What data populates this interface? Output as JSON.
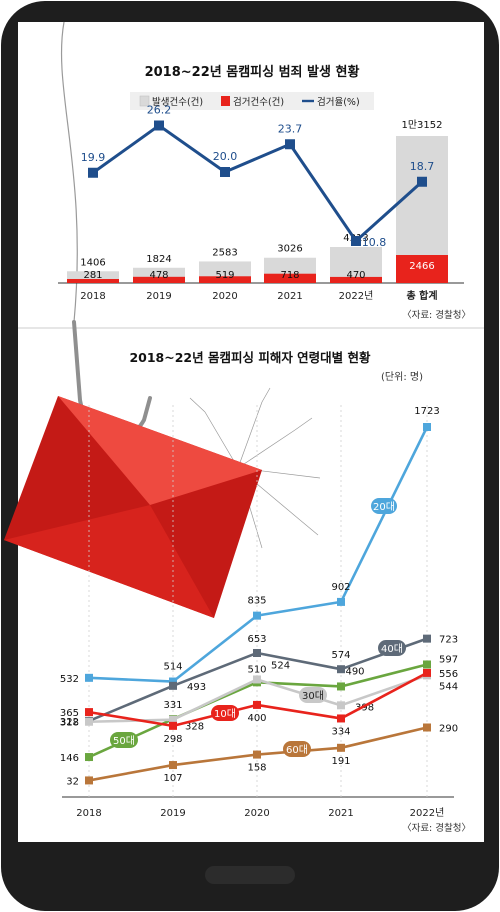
{
  "chart_data": [
    {
      "type": "bar",
      "title": "2018~22년 몸캠피싱 범죄 발생 현황",
      "legend": [
        "발생건수(건)",
        "검거건수(건)",
        "검거율(%)"
      ],
      "categories": [
        "2018",
        "2019",
        "2020",
        "2021",
        "2022년",
        "총 합계"
      ],
      "series": [
        {
          "name": "발생건수(건)",
          "values": [
            1406,
            1824,
            2583,
            3026,
            4313,
            13152
          ],
          "labels": [
            "1406",
            "1824",
            "2583",
            "3026",
            "4313",
            "1만3152"
          ],
          "color": "#d9d9d9"
        },
        {
          "name": "검거건수(건)",
          "values": [
            281,
            478,
            519,
            718,
            470,
            2466
          ],
          "labels": [
            "281",
            "478",
            "519",
            "718",
            "470",
            "2466"
          ],
          "color": "#e8231c"
        },
        {
          "name": "검거율(%)",
          "values": [
            19.9,
            26.2,
            20.0,
            23.7,
            10.8,
            18.7
          ],
          "labels": [
            "19.9",
            "26.2",
            "20.0",
            "23.7",
            "10.8",
            "18.7"
          ],
          "color": "#1f4e8c"
        }
      ],
      "source": "〈자료: 경찰청〉"
    },
    {
      "type": "line",
      "title": "2018~22년 몸캠피싱 피해자 연령대별 현황",
      "unit": "(단위: 명)",
      "categories": [
        "2018",
        "2019",
        "2020",
        "2021",
        "2022년"
      ],
      "series": [
        {
          "name": "20대",
          "values": [
            532,
            514,
            835,
            902,
            1723
          ],
          "color": "#4ea6dc"
        },
        {
          "name": "40대",
          "values": [
            322,
            493,
            653,
            574,
            723
          ],
          "color": "#5e6a78"
        },
        {
          "name": "50대",
          "values": [
            146,
            331,
            510,
            490,
            597
          ],
          "color": "#6aa63f"
        },
        {
          "name": "30대",
          "values": [
            318,
            328,
            524,
            398,
            544
          ],
          "color": "#c8c8c8"
        },
        {
          "name": "10대",
          "values": [
            365,
            298,
            400,
            334,
            556
          ],
          "color": "#e8231c"
        },
        {
          "name": "60대",
          "values": [
            32,
            107,
            158,
            191,
            290
          ],
          "color": "#b9763a"
        }
      ],
      "source": "〈자료: 경찰청〉"
    }
  ]
}
